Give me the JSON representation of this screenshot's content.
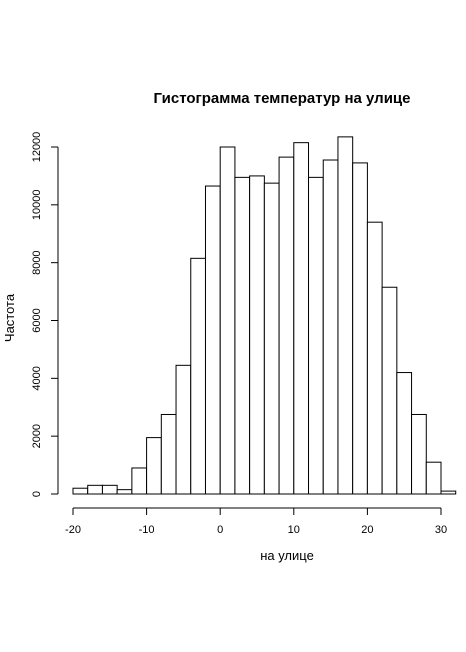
{
  "chart_data": {
    "type": "bar",
    "title": "Гистограмма температур на улице",
    "xlabel": "на улице",
    "ylabel": "Частота",
    "bin_width": 2,
    "bin_starts": [
      -20,
      -18,
      -16,
      -14,
      -12,
      -10,
      -8,
      -6,
      -4,
      -2,
      0,
      2,
      4,
      6,
      8,
      10,
      12,
      14,
      16,
      18,
      20,
      22,
      24,
      26,
      28,
      30
    ],
    "values": [
      200,
      300,
      300,
      150,
      900,
      1950,
      2750,
      4450,
      8150,
      10650,
      12000,
      10950,
      11000,
      10750,
      11650,
      12150,
      10950,
      11550,
      12350,
      11450,
      9400,
      7150,
      4200,
      2750,
      1100,
      100
    ],
    "xlim": [
      -20,
      32
    ],
    "ylim": [
      0,
      12400
    ],
    "x_ticks": [
      -20,
      -10,
      0,
      10,
      20,
      30
    ],
    "y_ticks": [
      0,
      2000,
      4000,
      6000,
      8000,
      10000,
      12000
    ],
    "grid": false
  }
}
